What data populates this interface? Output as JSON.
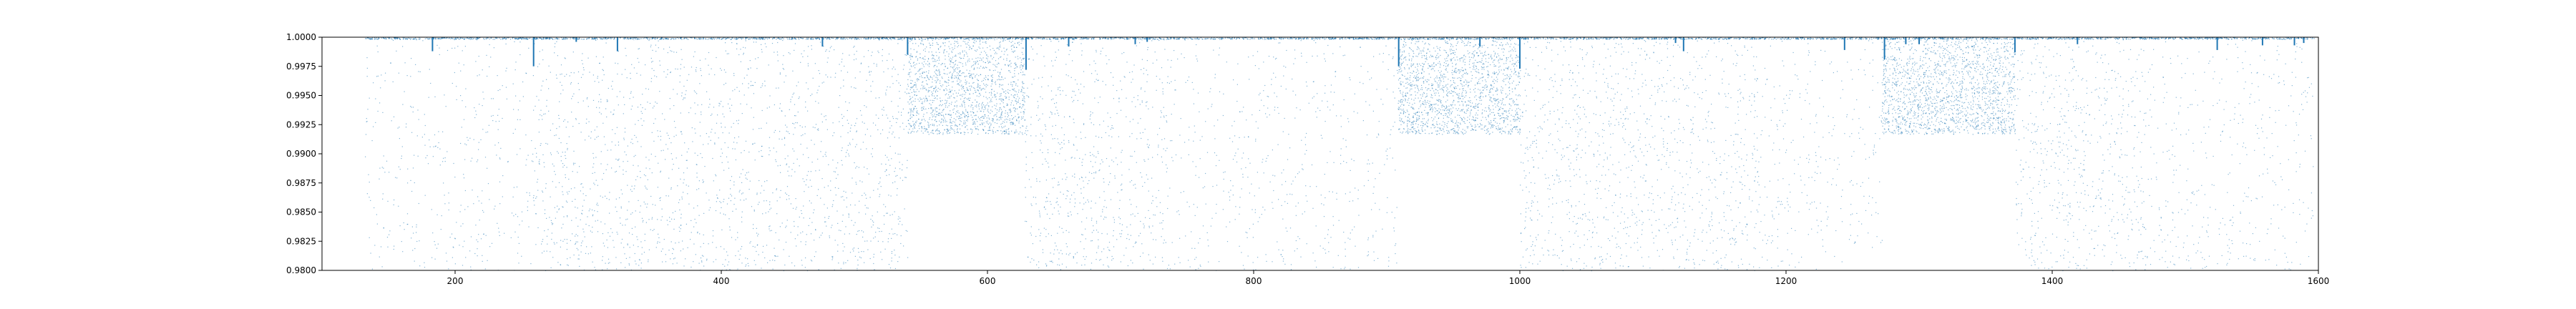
{
  "chart_data": {
    "type": "scatter",
    "title": "",
    "xlabel": "",
    "ylabel": "",
    "xlim": [
      100,
      1600
    ],
    "ylim": [
      0.98,
      1.0
    ],
    "grid": false,
    "legend": "none",
    "marker_color": "#1f77b4",
    "x_ticks": [
      200,
      400,
      600,
      800,
      1000,
      1200,
      1400,
      1600
    ],
    "x_tick_labels": [
      "200",
      "400",
      "600",
      "800",
      "1000",
      "1200",
      "1400",
      "1600"
    ],
    "y_ticks": [
      0.98,
      0.9825,
      0.985,
      0.9875,
      0.99,
      0.9925,
      0.995,
      0.9975,
      1.0
    ],
    "y_tick_labels": [
      "0.9800",
      "0.9825",
      "0.9850",
      "0.9875",
      "0.9900",
      "0.9925",
      "0.9950",
      "0.9975",
      "1.0000"
    ],
    "segments": [
      {
        "x_start": 132,
        "x_end": 258,
        "y_min": 0.98,
        "y_max": 1.0,
        "density": "sparse"
      },
      {
        "x_start": 258,
        "x_end": 540,
        "y_min": 0.98,
        "y_max": 1.0,
        "density": "medium"
      },
      {
        "x_start": 540,
        "x_end": 628,
        "y_min": 0.9917,
        "y_max": 1.0,
        "density": "dense"
      },
      {
        "x_start": 628,
        "x_end": 735,
        "y_min": 0.98,
        "y_max": 1.0,
        "density": "medium"
      },
      {
        "x_start": 735,
        "x_end": 908,
        "y_min": 0.98,
        "y_max": 1.0,
        "density": "sparse"
      },
      {
        "x_start": 908,
        "x_end": 1000,
        "y_min": 0.9917,
        "y_max": 1.0,
        "density": "dense"
      },
      {
        "x_start": 1000,
        "x_end": 1180,
        "y_min": 0.98,
        "y_max": 1.0,
        "density": "medium"
      },
      {
        "x_start": 1180,
        "x_end": 1272,
        "y_min": 0.98,
        "y_max": 1.0,
        "density": "sparse"
      },
      {
        "x_start": 1272,
        "x_end": 1372,
        "y_min": 0.9917,
        "y_max": 1.0,
        "density": "dense"
      },
      {
        "x_start": 1372,
        "x_end": 1470,
        "y_min": 0.98,
        "y_max": 1.0,
        "density": "medium"
      },
      {
        "x_start": 1470,
        "x_end": 1597,
        "y_min": 0.98,
        "y_max": 1.0,
        "density": "sparse"
      }
    ],
    "dips": [
      {
        "x": 183,
        "min": 0.9988
      },
      {
        "x": 259,
        "min": 0.9975
      },
      {
        "x": 291,
        "min": 0.9996
      },
      {
        "x": 322,
        "min": 0.9988
      },
      {
        "x": 476,
        "min": 0.9992
      },
      {
        "x": 540,
        "min": 0.9985
      },
      {
        "x": 629,
        "min": 0.9972
      },
      {
        "x": 661,
        "min": 0.9992
      },
      {
        "x": 711,
        "min": 0.9994
      },
      {
        "x": 720,
        "min": 0.9996
      },
      {
        "x": 909,
        "min": 0.9975
      },
      {
        "x": 970,
        "min": 0.9992
      },
      {
        "x": 1000,
        "min": 0.9973
      },
      {
        "x": 1117,
        "min": 0.9995
      },
      {
        "x": 1123,
        "min": 0.9988
      },
      {
        "x": 1244,
        "min": 0.9989
      },
      {
        "x": 1274,
        "min": 0.9981
      },
      {
        "x": 1290,
        "min": 0.9994
      },
      {
        "x": 1300,
        "min": 0.9994
      },
      {
        "x": 1372,
        "min": 0.9987
      },
      {
        "x": 1419,
        "min": 0.9994
      },
      {
        "x": 1524,
        "min": 0.9989
      },
      {
        "x": 1558,
        "min": 0.9993
      },
      {
        "x": 1582,
        "min": 0.9993
      },
      {
        "x": 1589,
        "min": 0.9995
      }
    ]
  }
}
